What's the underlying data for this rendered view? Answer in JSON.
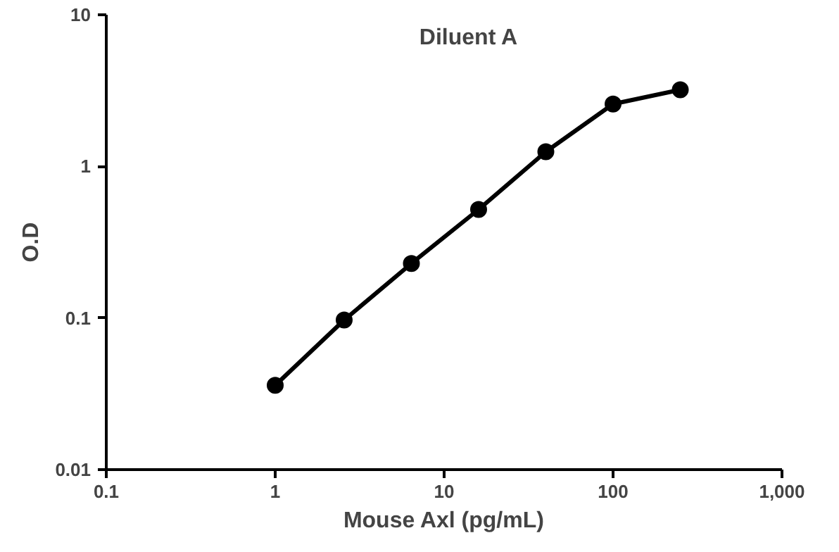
{
  "chart_data": {
    "type": "line",
    "title": "Diluent A",
    "xlabel": "Mouse Axl (pg/mL)",
    "ylabel": "O.D",
    "log": "xy",
    "x": [
      1,
      2.56,
      6.4,
      16,
      40,
      100,
      250
    ],
    "series": [
      {
        "color": "#000000",
        "values": [
          0.036,
          0.097,
          0.229,
          0.52,
          1.25,
          2.58,
          3.2
        ]
      }
    ],
    "xlim": [
      0.1,
      1000
    ],
    "ylim": [
      0.01,
      10
    ],
    "xticks": [
      0.1,
      1,
      10,
      100,
      {
        "value": 1000,
        "label": "1,000"
      }
    ],
    "yticks": [
      0.01,
      0.1,
      1,
      10
    ],
    "marker": "circle",
    "line_style": "solid"
  }
}
